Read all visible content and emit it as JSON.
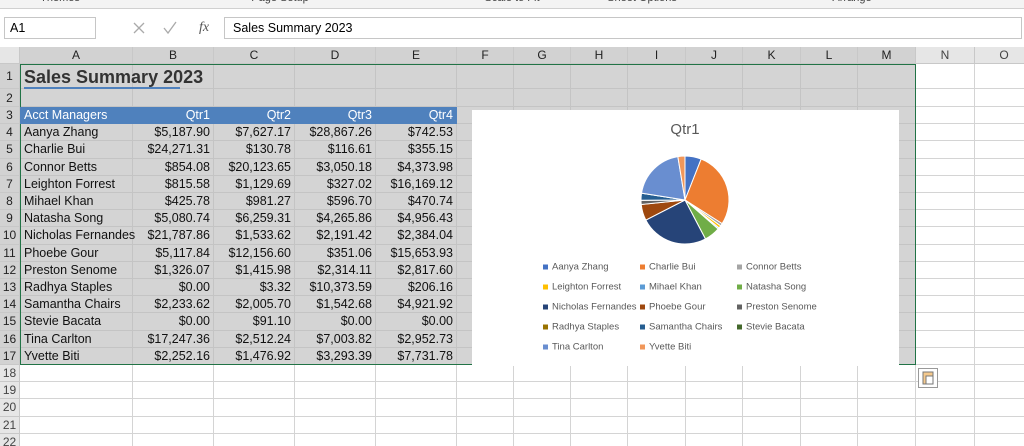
{
  "ribbon": {
    "groups": [
      "Themes",
      "Page Setup",
      "Scale to Fit",
      "Sheet Options",
      "Arrange"
    ]
  },
  "formula_bar": {
    "name_box": "A1",
    "function_button": "fx",
    "formula": "Sales Summary 2023"
  },
  "columns": [
    "A",
    "B",
    "C",
    "D",
    "E",
    "F",
    "G",
    "H",
    "I",
    "J",
    "K",
    "L",
    "M",
    "N",
    "O"
  ],
  "row_numbers": [
    1,
    2,
    3,
    4,
    5,
    6,
    7,
    8,
    9,
    10,
    11,
    12,
    13,
    14,
    15,
    16,
    17,
    18,
    19,
    20,
    21,
    22
  ],
  "sheet": {
    "title": "Sales Summary 2023",
    "header": [
      "Acct Managers",
      "Qtr1",
      "Qtr2",
      "Qtr3",
      "Qtr4"
    ],
    "rows": [
      [
        "Aanya Zhang",
        "$5,187.90",
        "$7,627.17",
        "$28,867.26",
        "$742.53"
      ],
      [
        "Charlie Bui",
        "$24,271.31",
        "$130.78",
        "$116.61",
        "$355.15"
      ],
      [
        "Connor Betts",
        "$854.08",
        "$20,123.65",
        "$3,050.18",
        "$4,373.98"
      ],
      [
        "Leighton Forrest",
        "$815.58",
        "$1,129.69",
        "$327.02",
        "$16,169.12"
      ],
      [
        "Mihael Khan",
        "$425.78",
        "$981.27",
        "$596.70",
        "$470.74"
      ],
      [
        "Natasha Song",
        "$5,080.74",
        "$6,259.31",
        "$4,265.86",
        "$4,956.43"
      ],
      [
        "Nicholas Fernandes",
        "$21,787.86",
        "$1,533.62",
        "$2,191.42",
        "$2,384.04"
      ],
      [
        "Phoebe Gour",
        "$5,117.84",
        "$12,156.60",
        "$351.06",
        "$15,653.93"
      ],
      [
        "Preston Senome",
        "$1,326.07",
        "$1,415.98",
        "$2,314.11",
        "$2,817.60"
      ],
      [
        "Radhya Staples",
        "$0.00",
        "$3.32",
        "$10,373.59",
        "$206.16"
      ],
      [
        "Samantha Chairs",
        "$2,233.62",
        "$2,005.70",
        "$1,542.68",
        "$4,921.92"
      ],
      [
        "Stevie Bacata",
        "$0.00",
        "$91.10",
        "$0.00",
        "$0.00"
      ],
      [
        "Tina Carlton",
        "$17,247.36",
        "$2,512.24",
        "$7,003.82",
        "$2,952.73"
      ],
      [
        "Yvette Biti",
        "$2,252.16",
        "$1,476.92",
        "$3,293.39",
        "$7,731.78"
      ]
    ]
  },
  "chart_data": {
    "type": "pie",
    "title": "Qtr1",
    "categories": [
      "Aanya Zhang",
      "Charlie Bui",
      "Connor Betts",
      "Leighton Forrest",
      "Mihael Khan",
      "Natasha Song",
      "Nicholas Fernandes",
      "Phoebe Gour",
      "Preston Senome",
      "Radhya Staples",
      "Samantha Chairs",
      "Stevie Bacata",
      "Tina Carlton",
      "Yvette Biti"
    ],
    "values": [
      5187.9,
      24271.31,
      854.08,
      815.58,
      425.78,
      5080.74,
      21787.86,
      5117.84,
      1326.07,
      0.0,
      2233.62,
      0.0,
      17247.36,
      2252.16
    ],
    "colors": [
      "#4472c4",
      "#ed7d31",
      "#a5a5a5",
      "#ffc000",
      "#5b9bd5",
      "#70ad47",
      "#264478",
      "#9e480e",
      "#636363",
      "#997300",
      "#255e91",
      "#43682b",
      "#698ed0",
      "#f1975a"
    ]
  }
}
